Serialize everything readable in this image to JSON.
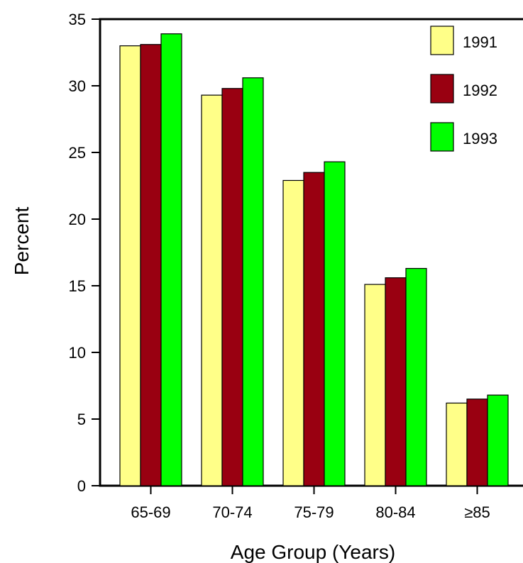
{
  "chart_data": {
    "type": "bar",
    "xlabel": "Age Group (Years)",
    "ylabel": "Percent",
    "categories": [
      "65-69",
      "70-74",
      "75-79",
      "80-84",
      "≥85"
    ],
    "series": [
      {
        "name": "1991",
        "color": "#FFFF88",
        "values": [
          33.0,
          29.3,
          22.9,
          15.1,
          6.2
        ]
      },
      {
        "name": "1992",
        "color": "#990011",
        "values": [
          33.1,
          29.8,
          23.5,
          15.6,
          6.5
        ]
      },
      {
        "name": "1993",
        "color": "#00FF00",
        "values": [
          33.9,
          30.6,
          24.3,
          16.3,
          6.8
        ]
      }
    ],
    "ylim": [
      0,
      35
    ],
    "yticks": [
      "0",
      "5",
      "10",
      "15",
      "20",
      "25",
      "30",
      "35"
    ],
    "legend_position": "top-right",
    "grid": false
  }
}
